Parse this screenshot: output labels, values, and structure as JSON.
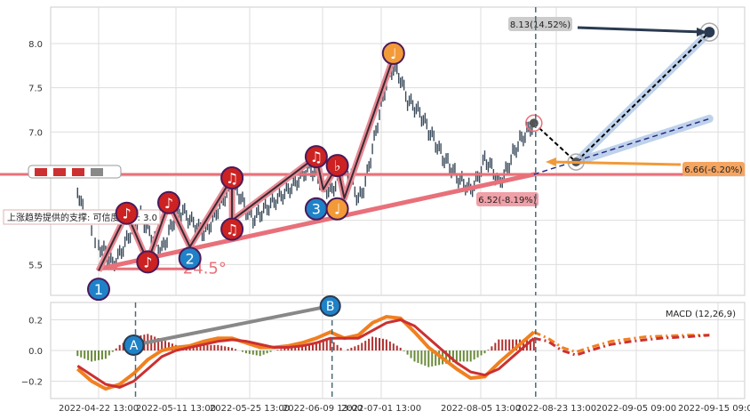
{
  "chart_data": [
    {
      "type": "line",
      "panel": "price",
      "x_ticks": [
        "2022-04-22 13:00",
        "2022-05-11 13:00",
        "2022-05-25 13:00",
        "2022-06-09 13:00",
        "2022-07-01 13:00",
        "2022-08-05 13:00",
        "2022-08-23 13:00",
        "2022-09-05 09:00",
        "2022-09-15 09:00"
      ],
      "y_ticks": [
        5.5,
        6.0,
        6.5,
        7.0,
        7.5,
        8.0
      ],
      "y_tick_labels": [
        "5.5",
        "",
        "",
        "7.0",
        "7.5",
        "8.0"
      ],
      "ylim": [
        5.15,
        8.45
      ],
      "grid": true,
      "price_series": [
        [
          -3,
          6.35
        ],
        [
          -2,
          6.05
        ],
        [
          0,
          5.72
        ],
        [
          1,
          5.64
        ],
        [
          2,
          5.5
        ],
        [
          3,
          5.62
        ],
        [
          4,
          5.78
        ],
        [
          5,
          5.94
        ],
        [
          6,
          6.05
        ],
        [
          7,
          5.9
        ],
        [
          8,
          5.76
        ],
        [
          9,
          5.66
        ],
        [
          10,
          5.85
        ],
        [
          11,
          6.06
        ],
        [
          12,
          6.1
        ],
        [
          13,
          6.0
        ],
        [
          14,
          5.92
        ],
        [
          15,
          5.85
        ],
        [
          16,
          5.96
        ],
        [
          17,
          6.12
        ],
        [
          18,
          6.27
        ],
        [
          19,
          6.38
        ],
        [
          20,
          6.3
        ],
        [
          21,
          6.12
        ],
        [
          22,
          6.02
        ],
        [
          23,
          6.08
        ],
        [
          24,
          6.15
        ],
        [
          25,
          6.22
        ],
        [
          26,
          6.28
        ],
        [
          27,
          6.35
        ],
        [
          28,
          6.42
        ],
        [
          29,
          6.52
        ],
        [
          30,
          6.6
        ],
        [
          31,
          6.52
        ],
        [
          32,
          6.4
        ],
        [
          33,
          6.32
        ],
        [
          34,
          6.45
        ],
        [
          35,
          6.6
        ],
        [
          36,
          6.48
        ],
        [
          37,
          6.22
        ],
        [
          38,
          6.42
        ],
        [
          39,
          6.8
        ],
        [
          40,
          7.2
        ],
        [
          41,
          7.55
        ],
        [
          42,
          7.73
        ],
        [
          43,
          7.6
        ],
        [
          44,
          7.35
        ],
        [
          45,
          7.28
        ],
        [
          46,
          7.18
        ],
        [
          47,
          7.02
        ],
        [
          48,
          6.88
        ],
        [
          49,
          6.72
        ],
        [
          50,
          6.62
        ],
        [
          51,
          6.5
        ],
        [
          52,
          6.42
        ],
        [
          53,
          6.35
        ],
        [
          54,
          6.48
        ],
        [
          55,
          6.7
        ],
        [
          56,
          6.6
        ],
        [
          57,
          6.42
        ],
        [
          58,
          6.55
        ],
        [
          59,
          6.75
        ],
        [
          60,
          6.9
        ],
        [
          61,
          7.0
        ],
        [
          62,
          7.1
        ]
      ],
      "wave_labels": [
        {
          "label": "1",
          "x": 0,
          "y": 5.22,
          "kind": "number",
          "color": "#1f82c8"
        },
        {
          "label": "♪",
          "x": 4,
          "y": 6.08,
          "kind": "note",
          "color": "#cc2222"
        },
        {
          "label": "♪",
          "x": 7,
          "y": 5.53,
          "kind": "note",
          "color": "#cc2222"
        },
        {
          "label": "♪",
          "x": 10,
          "y": 6.2,
          "kind": "note",
          "color": "#cc2222"
        },
        {
          "label": "2",
          "x": 13,
          "y": 5.57,
          "kind": "number",
          "color": "#1f82c8"
        },
        {
          "label": "♫",
          "x": 19,
          "y": 6.48,
          "kind": "note",
          "color": "#cc2222"
        },
        {
          "label": "♫",
          "x": 19,
          "y": 5.9,
          "kind": "note",
          "color": "#cc2222"
        },
        {
          "label": "♫",
          "x": 31,
          "y": 6.72,
          "kind": "note",
          "color": "#cc2222"
        },
        {
          "label": "3",
          "x": 31,
          "y": 6.13,
          "kind": "number",
          "color": "#1f82c8"
        },
        {
          "label": "♭",
          "x": 34,
          "y": 6.62,
          "kind": "note",
          "color": "#cc2222"
        },
        {
          "label": "♩",
          "x": 34,
          "y": 6.13,
          "kind": "note",
          "color": "#f29a38"
        },
        {
          "label": "♩",
          "x": 42,
          "y": 7.89,
          "kind": "note",
          "color": "#f29a38"
        }
      ],
      "wave_path": [
        [
          0,
          5.43
        ],
        [
          4,
          6.08
        ],
        [
          7,
          5.53
        ],
        [
          10,
          6.2
        ],
        [
          13,
          5.7
        ],
        [
          19,
          6.48
        ],
        [
          19,
          6.0
        ],
        [
          31,
          6.72
        ],
        [
          32,
          6.35
        ],
        [
          34,
          6.62
        ],
        [
          35,
          6.25
        ],
        [
          42,
          7.85
        ]
      ],
      "support_line": {
        "from": [
          0,
          5.45
        ],
        "to": [
          62,
          6.52
        ],
        "label": "6.52(-8.19%)"
      },
      "support_text": "上涨趋势提供的支撑: 可信度评分: 3.0",
      "angle_label": "24.5°",
      "resistance_level": 6.52,
      "forecast": {
        "start": [
          62,
          7.1
        ],
        "pivot": [
          68,
          6.66
        ],
        "target_high": [
          87,
          8.13
        ],
        "target_low": [
          87,
          7.15
        ],
        "high_label": "8.13(14.52%)",
        "low_label": "6.66(-6.20%)"
      },
      "marker_icons": [
        "bear-icon",
        "bear-icon",
        "bear-icon",
        "bull-icon"
      ],
      "vertical_marker_x": 62,
      "colors": {
        "wave": "#f07080",
        "support": "#e8707a",
        "candles": "#3a4a5a",
        "forecast": "#1a2a40",
        "channel": "#b0c8e8"
      }
    },
    {
      "type": "bar",
      "panel": "macd",
      "title": "MACD (12,26,9)",
      "y_ticks": [
        0.2,
        0.0,
        -0.2
      ],
      "y_tick_labels": [
        "0.2",
        "0.0",
        "−0.2"
      ],
      "ylim": [
        -0.3,
        0.34
      ],
      "grid": true,
      "macd_line": [
        [
          -3,
          -0.12
        ],
        [
          -1,
          -0.2
        ],
        [
          1,
          -0.25
        ],
        [
          3,
          -0.22
        ],
        [
          5,
          -0.15
        ],
        [
          7,
          -0.06
        ],
        [
          9,
          0.0
        ],
        [
          11,
          0.02
        ],
        [
          13,
          0.03
        ],
        [
          15,
          0.06
        ],
        [
          17,
          0.08
        ],
        [
          19,
          0.08
        ],
        [
          21,
          0.05
        ],
        [
          23,
          0.02
        ],
        [
          25,
          0.02
        ],
        [
          27,
          0.03
        ],
        [
          29,
          0.05
        ],
        [
          31,
          0.08
        ],
        [
          33,
          0.12
        ],
        [
          35,
          0.08
        ],
        [
          37,
          0.1
        ],
        [
          39,
          0.18
        ],
        [
          41,
          0.22
        ],
        [
          43,
          0.21
        ],
        [
          45,
          0.12
        ],
        [
          47,
          0.02
        ],
        [
          49,
          -0.05
        ],
        [
          51,
          -0.12
        ],
        [
          53,
          -0.18
        ],
        [
          55,
          -0.17
        ],
        [
          57,
          -0.08
        ],
        [
          59,
          0.0
        ],
        [
          61,
          0.08
        ],
        [
          62,
          0.12
        ]
      ],
      "signal_line": [
        [
          -3,
          -0.1
        ],
        [
          -1,
          -0.16
        ],
        [
          1,
          -0.22
        ],
        [
          3,
          -0.24
        ],
        [
          5,
          -0.2
        ],
        [
          7,
          -0.12
        ],
        [
          9,
          -0.04
        ],
        [
          11,
          0.0
        ],
        [
          13,
          0.02
        ],
        [
          15,
          0.04
        ],
        [
          17,
          0.06
        ],
        [
          19,
          0.07
        ],
        [
          21,
          0.06
        ],
        [
          23,
          0.04
        ],
        [
          25,
          0.02
        ],
        [
          27,
          0.02
        ],
        [
          29,
          0.03
        ],
        [
          31,
          0.05
        ],
        [
          33,
          0.08
        ],
        [
          35,
          0.08
        ],
        [
          37,
          0.08
        ],
        [
          39,
          0.13
        ],
        [
          41,
          0.18
        ],
        [
          43,
          0.2
        ],
        [
          45,
          0.16
        ],
        [
          47,
          0.08
        ],
        [
          49,
          0.0
        ],
        [
          51,
          -0.08
        ],
        [
          53,
          -0.14
        ],
        [
          55,
          -0.16
        ],
        [
          57,
          -0.12
        ],
        [
          59,
          -0.04
        ],
        [
          61,
          0.04
        ],
        [
          62,
          0.08
        ]
      ],
      "macd_forecast": [
        [
          62,
          0.12
        ],
        [
          64,
          0.08
        ],
        [
          66,
          0.02
        ],
        [
          68,
          -0.01
        ],
        [
          70,
          0.02
        ],
        [
          73,
          0.06
        ],
        [
          78,
          0.09
        ],
        [
          84,
          0.1
        ],
        [
          87,
          0.1
        ]
      ],
      "signal_forecast": [
        [
          62,
          0.08
        ],
        [
          64,
          0.06
        ],
        [
          66,
          0.0
        ],
        [
          68,
          -0.03
        ],
        [
          70,
          0.0
        ],
        [
          73,
          0.04
        ],
        [
          76,
          0.06
        ],
        [
          80,
          0.08
        ],
        [
          84,
          0.09
        ],
        [
          87,
          0.1
        ]
      ],
      "points": [
        {
          "label": "A",
          "x": 5,
          "y": 0.035
        },
        {
          "label": "B",
          "x": 33,
          "y": 0.29
        }
      ],
      "marker_xs": [
        5,
        33,
        62
      ],
      "colors": {
        "macd": "#f08020",
        "signal": "#cc3030",
        "hist_pos": "#b03030",
        "hist_neg": "#6a8a3a",
        "ab_line": "#888888",
        "marker": "#4a6a7a"
      }
    }
  ]
}
